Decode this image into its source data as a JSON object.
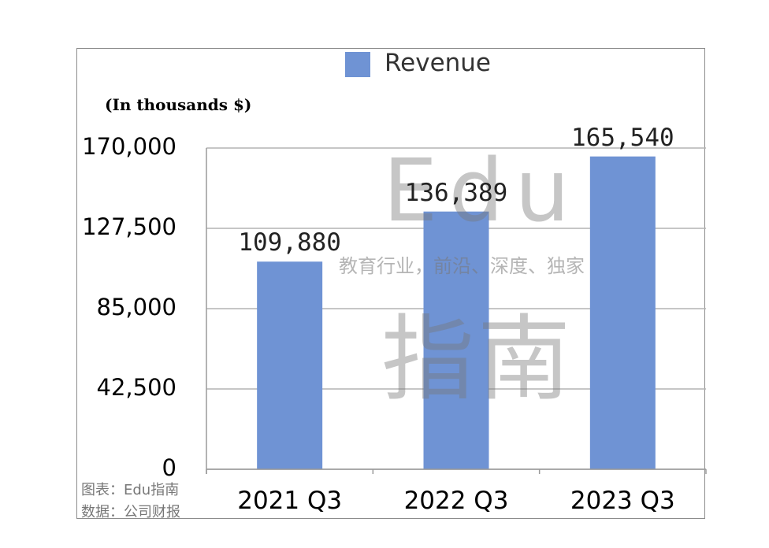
{
  "chart_data": {
    "type": "bar",
    "categories": [
      "2021 Q3",
      "2022 Q3",
      "2023 Q3"
    ],
    "series": [
      {
        "name": "Revenue",
        "values": [
          109880,
          136389,
          165540
        ],
        "color": "#6f93d4"
      }
    ],
    "data_labels": [
      "109,880",
      "136,389",
      "165,540"
    ],
    "ylabel": "(In thousands $)",
    "ylim": [
      0,
      170000
    ],
    "yticks": [
      0,
      42500,
      85000,
      127500,
      170000
    ],
    "ytick_labels": [
      "0",
      "42,500",
      "85,000",
      "127,500",
      "170,000"
    ],
    "grid": true,
    "legend": "top-center"
  },
  "legend": {
    "label": "Revenue"
  },
  "watermark": {
    "brand": "Edu",
    "tagline": "教育行业，前沿、深度、独家",
    "name": "指南"
  },
  "notes": {
    "source_chart": "图表：Edu指南",
    "source_data": "数据：公司财报"
  }
}
